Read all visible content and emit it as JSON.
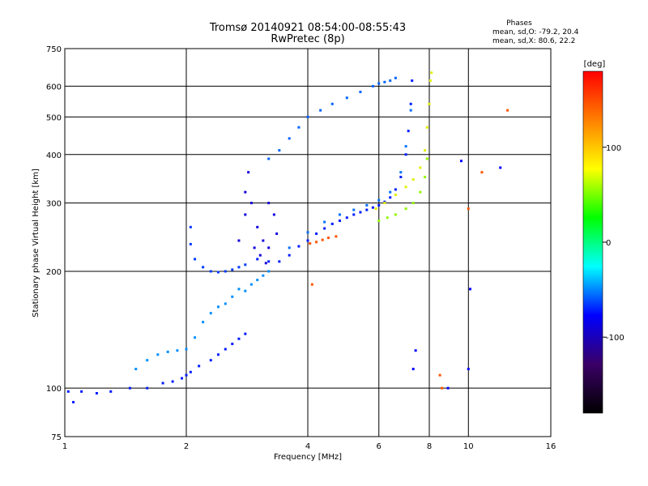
{
  "chart_data": {
    "type": "scatter",
    "title": "Tromsø 20140921 08:54:00-08:55:43",
    "subtitle": "RwPretec (8p)",
    "phases_block": {
      "heading": "Phases",
      "line_o": "mean, sd,O: -79.2, 20.4",
      "line_x": "mean, sd,X:  80.6, 22.2"
    },
    "xlabel": "Frequency [MHz]",
    "ylabel": "Stationary phase Virtual Height [km]",
    "x_scale": "log",
    "y_scale": "log",
    "xlim": [
      1,
      16
    ],
    "ylim": [
      75,
      750
    ],
    "x_ticks": [
      1,
      2,
      4,
      6,
      8,
      10,
      16
    ],
    "x_tick_labels": [
      "1",
      "2",
      "4",
      "6",
      "8",
      "10",
      "16"
    ],
    "y_ticks": [
      75,
      100,
      200,
      300,
      400,
      500,
      600,
      750
    ],
    "y_tick_labels": [
      "75",
      "100",
      "200",
      "300",
      "400",
      "500",
      "600",
      "750"
    ],
    "grid": true,
    "colorbar": {
      "label": "[deg]",
      "range": [
        -180,
        180
      ],
      "ticks": [
        100,
        0,
        -100
      ],
      "tick_labels": [
        "100",
        "0",
        "-100"
      ],
      "colors": [
        "#000000",
        "#3a0066",
        "#0000ff",
        "#00ffff",
        "#00ff00",
        "#ffff00",
        "#ff8000",
        "#ff0000"
      ]
    },
    "series": [
      {
        "region": "low-E-trace",
        "phase": -100,
        "points": [
          [
            1.02,
            98
          ],
          [
            1.05,
            92
          ],
          [
            1.1,
            98
          ],
          [
            1.2,
            97
          ],
          [
            1.3,
            98
          ],
          [
            1.45,
            100
          ],
          [
            1.6,
            100
          ],
          [
            1.75,
            103
          ],
          [
            1.85,
            104
          ],
          [
            1.95,
            106
          ],
          [
            2.0,
            108
          ],
          [
            2.05,
            110
          ],
          [
            2.15,
            114
          ],
          [
            2.3,
            118
          ],
          [
            2.4,
            122
          ],
          [
            2.5,
            126
          ],
          [
            2.6,
            130
          ],
          [
            2.7,
            134
          ],
          [
            2.8,
            138
          ]
        ]
      },
      {
        "region": "low-band-upper",
        "phase": -60,
        "points": [
          [
            1.5,
            112
          ],
          [
            1.6,
            118
          ],
          [
            1.7,
            122
          ],
          [
            1.8,
            124
          ],
          [
            1.9,
            125
          ],
          [
            2.0,
            126
          ],
          [
            2.1,
            135
          ],
          [
            2.2,
            148
          ],
          [
            2.3,
            156
          ],
          [
            2.4,
            162
          ],
          [
            2.5,
            165
          ],
          [
            2.6,
            172
          ],
          [
            2.7,
            180
          ],
          [
            2.8,
            178
          ],
          [
            2.9,
            185
          ],
          [
            3.0,
            190
          ],
          [
            3.1,
            195
          ],
          [
            3.2,
            200
          ]
        ]
      },
      {
        "region": "E-cusp",
        "phase": -90,
        "points": [
          [
            2.05,
            260
          ],
          [
            2.05,
            235
          ],
          [
            2.1,
            215
          ],
          [
            2.2,
            205
          ],
          [
            2.3,
            200
          ],
          [
            2.4,
            199
          ],
          [
            2.5,
            200
          ],
          [
            2.6,
            202
          ],
          [
            2.7,
            205
          ],
          [
            2.8,
            208
          ]
        ]
      },
      {
        "region": "spread-column",
        "phase": -120,
        "points": [
          [
            2.7,
            240
          ],
          [
            2.8,
            280
          ],
          [
            2.8,
            320
          ],
          [
            2.85,
            360
          ],
          [
            2.9,
            300
          ],
          [
            2.95,
            230
          ],
          [
            3.0,
            260
          ],
          [
            3.05,
            220
          ],
          [
            3.1,
            240
          ],
          [
            3.15,
            210
          ],
          [
            3.2,
            230
          ],
          [
            3.2,
            300
          ],
          [
            3.3,
            280
          ],
          [
            3.35,
            250
          ]
        ]
      },
      {
        "region": "F1-trace",
        "phase": -100,
        "points": [
          [
            3.0,
            215
          ],
          [
            3.2,
            212
          ],
          [
            3.4,
            212
          ],
          [
            3.6,
            220
          ],
          [
            3.8,
            232
          ],
          [
            4.0,
            240
          ],
          [
            4.2,
            250
          ],
          [
            4.4,
            258
          ],
          [
            4.6,
            265
          ],
          [
            4.8,
            270
          ],
          [
            5.0,
            275
          ],
          [
            5.2,
            280
          ],
          [
            5.4,
            284
          ],
          [
            5.6,
            288
          ],
          [
            5.8,
            292
          ],
          [
            6.0,
            296
          ],
          [
            6.2,
            302
          ],
          [
            6.4,
            310
          ],
          [
            6.6,
            325
          ],
          [
            6.8,
            350
          ],
          [
            7.0,
            400
          ],
          [
            7.1,
            460
          ],
          [
            7.2,
            540
          ],
          [
            7.25,
            620
          ]
        ]
      },
      {
        "region": "F1-trace-upper",
        "phase": -70,
        "points": [
          [
            3.6,
            230
          ],
          [
            4.0,
            252
          ],
          [
            4.4,
            268
          ],
          [
            4.8,
            280
          ],
          [
            5.2,
            288
          ],
          [
            5.6,
            296
          ],
          [
            6.0,
            305
          ],
          [
            6.4,
            320
          ],
          [
            6.8,
            360
          ],
          [
            7.0,
            420
          ],
          [
            7.2,
            520
          ]
        ]
      },
      {
        "region": "F-upper-branch",
        "phase": -75,
        "points": [
          [
            3.2,
            390
          ],
          [
            3.4,
            410
          ],
          [
            3.6,
            440
          ],
          [
            3.8,
            470
          ],
          [
            4.0,
            500
          ],
          [
            4.3,
            520
          ],
          [
            4.6,
            540
          ],
          [
            5.0,
            560
          ],
          [
            5.4,
            580
          ],
          [
            5.8,
            600
          ],
          [
            6.0,
            610
          ],
          [
            6.2,
            615
          ],
          [
            6.4,
            620
          ],
          [
            6.6,
            630
          ]
        ]
      },
      {
        "region": "X-trace",
        "phase": 70,
        "points": [
          [
            5.9,
            290
          ],
          [
            6.2,
            300
          ],
          [
            6.6,
            315
          ],
          [
            7.0,
            330
          ],
          [
            7.3,
            345
          ],
          [
            7.6,
            370
          ],
          [
            7.8,
            410
          ],
          [
            7.9,
            470
          ],
          [
            8.0,
            540
          ],
          [
            8.05,
            620
          ],
          [
            8.1,
            650
          ]
        ]
      },
      {
        "region": "X-trace-lower",
        "phase": 40,
        "points": [
          [
            6.0,
            270
          ],
          [
            6.3,
            275
          ],
          [
            6.6,
            280
          ],
          [
            7.0,
            290
          ],
          [
            7.3,
            300
          ],
          [
            7.6,
            320
          ],
          [
            7.8,
            350
          ],
          [
            7.9,
            390
          ]
        ]
      },
      {
        "region": "orange-segment",
        "phase": 150,
        "points": [
          [
            4.05,
            236
          ],
          [
            4.2,
            238
          ],
          [
            4.35,
            241
          ],
          [
            4.5,
            244
          ],
          [
            4.7,
            246
          ]
        ]
      },
      {
        "region": "strays",
        "phase": 150,
        "points": [
          [
            4.1,
            185
          ],
          [
            10.0,
            290
          ],
          [
            10.8,
            360
          ],
          [
            12.5,
            520
          ],
          [
            8.5,
            108
          ],
          [
            8.6,
            100
          ]
        ]
      },
      {
        "region": "strays-blue",
        "phase": -110,
        "points": [
          [
            9.6,
            385
          ],
          [
            12.0,
            370
          ],
          [
            10.1,
            180
          ],
          [
            10.0,
            112
          ],
          [
            8.9,
            100
          ],
          [
            7.4,
            125
          ],
          [
            7.3,
            112
          ]
        ]
      }
    ]
  }
}
